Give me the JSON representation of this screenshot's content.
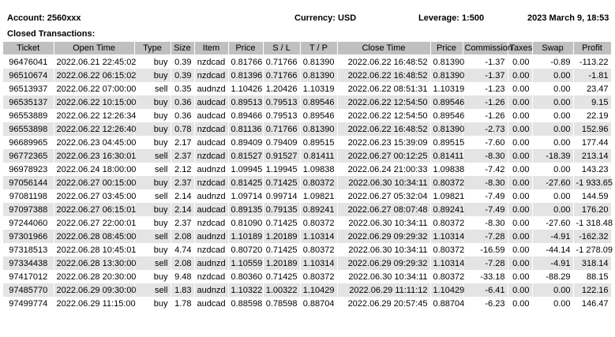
{
  "header": {
    "account": "Account: 2560xxx",
    "currency": "Currency: USD",
    "leverage": "Leverage: 1:500",
    "date": "2023 March 9, 18:53",
    "section_title": "Closed Transactions:"
  },
  "columns": [
    "Ticket",
    "Open Time",
    "Type",
    "Size",
    "Item",
    "Price",
    "S / L",
    "T / P",
    "Close Time",
    "Price",
    "Commission",
    "Taxes",
    "Swap",
    "Profit"
  ],
  "rows": [
    [
      "96476041",
      "2022.06.21 22:45:02",
      "buy",
      "0.39",
      "nzdcad",
      "0.81766",
      "0.71766",
      "0.81390",
      "2022.06.22 16:48:52",
      "0.81390",
      "-1.37",
      "0.00",
      "-0.89",
      "-113.22"
    ],
    [
      "96510674",
      "2022.06.22 06:15:02",
      "buy",
      "0.39",
      "nzdcad",
      "0.81396",
      "0.71766",
      "0.81390",
      "2022.06.22 16:48:52",
      "0.81390",
      "-1.37",
      "0.00",
      "0.00",
      "-1.81"
    ],
    [
      "96513937",
      "2022.06.22 07:00:00",
      "sell",
      "0.35",
      "audnzd",
      "1.10426",
      "1.20426",
      "1.10319",
      "2022.06.22 08:51:31",
      "1.10319",
      "-1.23",
      "0.00",
      "0.00",
      "23.47"
    ],
    [
      "96535137",
      "2022.06.22 10:15:00",
      "buy",
      "0.36",
      "audcad",
      "0.89513",
      "0.79513",
      "0.89546",
      "2022.06.22 12:54:50",
      "0.89546",
      "-1.26",
      "0.00",
      "0.00",
      "9.15"
    ],
    [
      "96553889",
      "2022.06.22 12:26:34",
      "buy",
      "0.36",
      "audcad",
      "0.89466",
      "0.79513",
      "0.89546",
      "2022.06.22 12:54:50",
      "0.89546",
      "-1.26",
      "0.00",
      "0.00",
      "22.19"
    ],
    [
      "96553898",
      "2022.06.22 12:26:40",
      "buy",
      "0.78",
      "nzdcad",
      "0.81136",
      "0.71766",
      "0.81390",
      "2022.06.22 16:48:52",
      "0.81390",
      "-2.73",
      "0.00",
      "0.00",
      "152.96"
    ],
    [
      "96689965",
      "2022.06.23 04:45:00",
      "buy",
      "2.17",
      "audcad",
      "0.89409",
      "0.79409",
      "0.89515",
      "2022.06.23 15:39:09",
      "0.89515",
      "-7.60",
      "0.00",
      "0.00",
      "177.44"
    ],
    [
      "96772365",
      "2022.06.23 16:30:01",
      "sell",
      "2.37",
      "nzdcad",
      "0.81527",
      "0.91527",
      "0.81411",
      "2022.06.27 00:12:25",
      "0.81411",
      "-8.30",
      "0.00",
      "-18.39",
      "213.14"
    ],
    [
      "96978923",
      "2022.06.24 18:00:00",
      "sell",
      "2.12",
      "audnzd",
      "1.09945",
      "1.19945",
      "1.09838",
      "2022.06.24 21:00:33",
      "1.09838",
      "-7.42",
      "0.00",
      "0.00",
      "143.23"
    ],
    [
      "97056144",
      "2022.06.27 00:15:00",
      "buy",
      "2.37",
      "nzdcad",
      "0.81425",
      "0.71425",
      "0.80372",
      "2022.06.30 10:34:11",
      "0.80372",
      "-8.30",
      "0.00",
      "-27.60",
      "-1 933.65"
    ],
    [
      "97081198",
      "2022.06.27 03:45:00",
      "sell",
      "2.14",
      "audnzd",
      "1.09714",
      "0.99714",
      "1.09821",
      "2022.06.27 05:32:04",
      "1.09821",
      "-7.49",
      "0.00",
      "0.00",
      "144.59"
    ],
    [
      "97097388",
      "2022.06.27 06:15:01",
      "buy",
      "2.14",
      "audcad",
      "0.89135",
      "0.79135",
      "0.89241",
      "2022.06.27 08:07:48",
      "0.89241",
      "-7.49",
      "0.00",
      "0.00",
      "176.20"
    ],
    [
      "97244060",
      "2022.06.27 22:00:01",
      "buy",
      "2.37",
      "nzdcad",
      "0.81090",
      "0.71425",
      "0.80372",
      "2022.06.30 10:34:11",
      "0.80372",
      "-8.30",
      "0.00",
      "-27.60",
      "-1 318.48"
    ],
    [
      "97301966",
      "2022.06.28 08:45:00",
      "sell",
      "2.08",
      "audnzd",
      "1.10189",
      "1.20189",
      "1.10314",
      "2022.06.29 09:29:32",
      "1.10314",
      "-7.28",
      "0.00",
      "-4.91",
      "-162.32"
    ],
    [
      "97318513",
      "2022.06.28 10:45:01",
      "buy",
      "4.74",
      "nzdcad",
      "0.80720",
      "0.71425",
      "0.80372",
      "2022.06.30 10:34:11",
      "0.80372",
      "-16.59",
      "0.00",
      "-44.14",
      "-1 278.09"
    ],
    [
      "97334438",
      "2022.06.28 13:30:00",
      "sell",
      "2.08",
      "audnzd",
      "1.10559",
      "1.20189",
      "1.10314",
      "2022.06.29 09:29:32",
      "1.10314",
      "-7.28",
      "0.00",
      "-4.91",
      "318.14"
    ],
    [
      "97417012",
      "2022.06.28 20:30:00",
      "buy",
      "9.48",
      "nzdcad",
      "0.80360",
      "0.71425",
      "0.80372",
      "2022.06.30 10:34:11",
      "0.80372",
      "-33.18",
      "0.00",
      "-88.29",
      "88.15"
    ],
    [
      "97485770",
      "2022.06.29 09:30:00",
      "sell",
      "1.83",
      "audnzd",
      "1.10322",
      "1.00322",
      "1.10429",
      "2022.06.29 11:11:12",
      "1.10429",
      "-6.41",
      "0.00",
      "0.00",
      "122.16"
    ],
    [
      "97499774",
      "2022.06.29 11:15:00",
      "buy",
      "1.78",
      "audcad",
      "0.88598",
      "0.78598",
      "0.88704",
      "2022.06.29 20:57:45",
      "0.88704",
      "-6.23",
      "0.00",
      "0.00",
      "146.47"
    ]
  ]
}
